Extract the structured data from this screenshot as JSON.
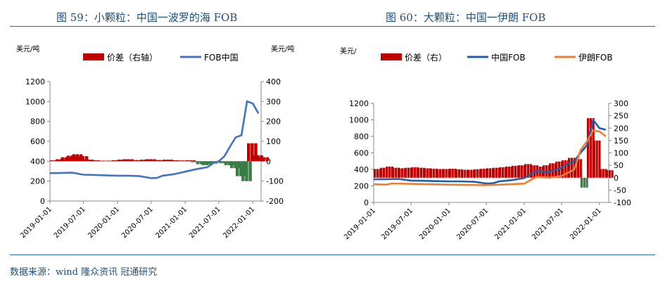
{
  "titles": {
    "left": "图 59：小颗粒：中国一波罗的海 FOB",
    "right": "图 60：大颗粒：中国一伊朗 FOB"
  },
  "source": "数据来源：wind  隆众资讯  冠通研究",
  "colors": {
    "spread": "#c00000",
    "china": "#4472c4",
    "china2": "#1f5fa8",
    "iran": "#ed7d31",
    "title": "#1f4e79"
  },
  "chart_data": [
    {
      "type": "bar+line",
      "unit_left": "美元/吨",
      "unit_right": "美元/吨",
      "legend": [
        "价差（右轴）",
        "FOB中国"
      ],
      "x_ticks": [
        "2019-01-01",
        "2019-07-01",
        "2020-01-01",
        "2020-07-01",
        "2021-01-01",
        "2021-07-01",
        "2022-01-01"
      ],
      "x_range": [
        "2019-01-01",
        "2022-02-15"
      ],
      "ylim_left": [
        0,
        1200
      ],
      "yticks_left": [
        0,
        200,
        400,
        600,
        800,
        1000,
        1200
      ],
      "ylim_right": [
        -200,
        400
      ],
      "yticks_right": [
        -200,
        -100,
        0,
        100,
        200,
        300,
        400
      ],
      "series": [
        {
          "name": "价差（右轴）",
          "axis": "right",
          "kind": "bar",
          "points": [
            [
              "2019-01-01",
              5
            ],
            [
              "2019-02-01",
              10
            ],
            [
              "2019-03-01",
              20
            ],
            [
              "2019-04-01",
              28
            ],
            [
              "2019-05-01",
              35
            ],
            [
              "2019-06-01",
              25
            ],
            [
              "2019-07-01",
              8
            ],
            [
              "2019-08-01",
              5
            ],
            [
              "2019-09-01",
              3
            ],
            [
              "2019-10-01",
              2
            ],
            [
              "2019-11-01",
              3
            ],
            [
              "2019-12-01",
              5
            ],
            [
              "2020-01-01",
              8
            ],
            [
              "2020-02-01",
              10
            ],
            [
              "2020-03-01",
              6
            ],
            [
              "2020-04-01",
              4
            ],
            [
              "2020-05-01",
              8
            ],
            [
              "2020-06-01",
              10
            ],
            [
              "2020-07-01",
              6
            ],
            [
              "2020-08-01",
              5
            ],
            [
              "2020-09-01",
              8
            ],
            [
              "2020-10-01",
              5
            ],
            [
              "2020-11-01",
              4
            ],
            [
              "2020-12-01",
              3
            ],
            [
              "2021-01-01",
              5
            ],
            [
              "2021-02-01",
              -5
            ],
            [
              "2021-03-01",
              -15
            ],
            [
              "2021-04-01",
              -20
            ],
            [
              "2021-05-01",
              -12
            ],
            [
              "2021-06-01",
              -5
            ],
            [
              "2021-07-01",
              -10
            ],
            [
              "2021-08-01",
              -20
            ],
            [
              "2021-09-01",
              -35
            ],
            [
              "2021-10-01",
              -75
            ],
            [
              "2021-11-01",
              -100
            ],
            [
              "2021-12-01",
              90
            ],
            [
              "2022-01-01",
              30
            ],
            [
              "2022-02-01",
              20
            ]
          ]
        },
        {
          "name": "FOB中国",
          "axis": "left",
          "kind": "line",
          "points": [
            [
              "2019-01-01",
              280
            ],
            [
              "2019-03-01",
              282
            ],
            [
              "2019-05-01",
              285
            ],
            [
              "2019-07-01",
              265
            ],
            [
              "2019-09-01",
              262
            ],
            [
              "2019-11-01",
              258
            ],
            [
              "2020-01-01",
              255
            ],
            [
              "2020-03-01",
              255
            ],
            [
              "2020-05-01",
              250
            ],
            [
              "2020-07-01",
              230
            ],
            [
              "2020-08-01",
              232
            ],
            [
              "2020-09-01",
              255
            ],
            [
              "2020-11-01",
              270
            ],
            [
              "2021-01-01",
              295
            ],
            [
              "2021-03-01",
              320
            ],
            [
              "2021-05-01",
              340
            ],
            [
              "2021-06-01",
              380
            ],
            [
              "2021-07-01",
              400
            ],
            [
              "2021-08-01",
              450
            ],
            [
              "2021-09-01",
              550
            ],
            [
              "2021-10-01",
              640
            ],
            [
              "2021-11-01",
              660
            ],
            [
              "2021-12-01",
              1000
            ],
            [
              "2022-01-01",
              980
            ],
            [
              "2022-02-01",
              880
            ]
          ]
        }
      ]
    },
    {
      "type": "bar+line",
      "unit_left": "美元/",
      "legend": [
        "价差（右）",
        "中国FOB",
        "伊朗FOB"
      ],
      "x_ticks": [
        "2019-01-01",
        "2019-07-01",
        "2020-01-01",
        "2020-07-01",
        "2021-01-01",
        "2021-07-01",
        "2022-01-01"
      ],
      "x_range": [
        "2019-01-01",
        "2022-02-15"
      ],
      "ylim_left": [
        0,
        1200
      ],
      "yticks_left": [
        0,
        200,
        400,
        600,
        800,
        1000,
        1200
      ],
      "ylim_right": [
        -100,
        300
      ],
      "yticks_right": [
        -100,
        -50,
        0,
        50,
        100,
        150,
        200,
        250,
        300
      ],
      "series": [
        {
          "name": "价差（右）",
          "axis": "right",
          "kind": "bar",
          "points": [
            [
              "2019-01-01",
              35
            ],
            [
              "2019-02-01",
              40
            ],
            [
              "2019-03-01",
              45
            ],
            [
              "2019-04-01",
              40
            ],
            [
              "2019-05-01",
              38
            ],
            [
              "2019-06-01",
              40
            ],
            [
              "2019-07-01",
              42
            ],
            [
              "2019-08-01",
              40
            ],
            [
              "2019-09-01",
              38
            ],
            [
              "2019-10-01",
              36
            ],
            [
              "2019-11-01",
              35
            ],
            [
              "2019-12-01",
              35
            ],
            [
              "2020-01-01",
              36
            ],
            [
              "2020-02-01",
              34
            ],
            [
              "2020-03-01",
              32
            ],
            [
              "2020-04-01",
              32
            ],
            [
              "2020-05-01",
              34
            ],
            [
              "2020-06-01",
              36
            ],
            [
              "2020-07-01",
              38
            ],
            [
              "2020-08-01",
              40
            ],
            [
              "2020-09-01",
              42
            ],
            [
              "2020-10-01",
              45
            ],
            [
              "2020-11-01",
              48
            ],
            [
              "2020-12-01",
              50
            ],
            [
              "2021-01-01",
              55
            ],
            [
              "2021-02-01",
              50
            ],
            [
              "2021-03-01",
              45
            ],
            [
              "2021-04-01",
              50
            ],
            [
              "2021-05-01",
              58
            ],
            [
              "2021-06-01",
              65
            ],
            [
              "2021-07-01",
              70
            ],
            [
              "2021-08-01",
              80
            ],
            [
              "2021-09-01",
              75
            ],
            [
              "2021-10-01",
              -40
            ],
            [
              "2021-11-01",
              240
            ],
            [
              "2021-12-01",
              150
            ],
            [
              "2022-01-01",
              35
            ],
            [
              "2022-02-01",
              30
            ]
          ]
        },
        {
          "name": "中国FOB",
          "axis": "left",
          "kind": "line",
          "points": [
            [
              "2019-01-01",
              280
            ],
            [
              "2019-03-01",
              282
            ],
            [
              "2019-05-01",
              285
            ],
            [
              "2019-07-01",
              265
            ],
            [
              "2019-09-01",
              262
            ],
            [
              "2019-11-01",
              258
            ],
            [
              "2020-01-01",
              255
            ],
            [
              "2020-03-01",
              255
            ],
            [
              "2020-05-01",
              250
            ],
            [
              "2020-07-01",
              230
            ],
            [
              "2020-08-01",
              232
            ],
            [
              "2020-09-01",
              255
            ],
            [
              "2020-11-01",
              270
            ],
            [
              "2021-01-01",
              295
            ],
            [
              "2021-03-01",
              380
            ],
            [
              "2021-05-01",
              370
            ],
            [
              "2021-07-01",
              420
            ],
            [
              "2021-08-01",
              470
            ],
            [
              "2021-09-01",
              500
            ],
            [
              "2021-10-01",
              600
            ],
            [
              "2021-11-01",
              690
            ],
            [
              "2021-12-01",
              1000
            ],
            [
              "2022-01-01",
              900
            ],
            [
              "2022-02-01",
              880
            ]
          ]
        },
        {
          "name": "伊朗FOB",
          "axis": "left",
          "kind": "line",
          "points": [
            [
              "2019-01-01",
              220
            ],
            [
              "2019-03-01",
              215
            ],
            [
              "2019-04-01",
              230
            ],
            [
              "2019-07-01",
              225
            ],
            [
              "2019-10-01",
              220
            ],
            [
              "2020-01-01",
              215
            ],
            [
              "2020-04-01",
              212
            ],
            [
              "2020-07-01",
              210
            ],
            [
              "2020-10-01",
              218
            ],
            [
              "2021-01-01",
              228
            ],
            [
              "2021-03-01",
              310
            ],
            [
              "2021-05-01",
              300
            ],
            [
              "2021-07-01",
              320
            ],
            [
              "2021-09-01",
              400
            ],
            [
              "2021-10-01",
              630
            ],
            [
              "2021-11-01",
              740
            ],
            [
              "2021-12-01",
              870
            ],
            [
              "2022-01-01",
              860
            ],
            [
              "2022-02-01",
              800
            ]
          ]
        }
      ]
    }
  ]
}
